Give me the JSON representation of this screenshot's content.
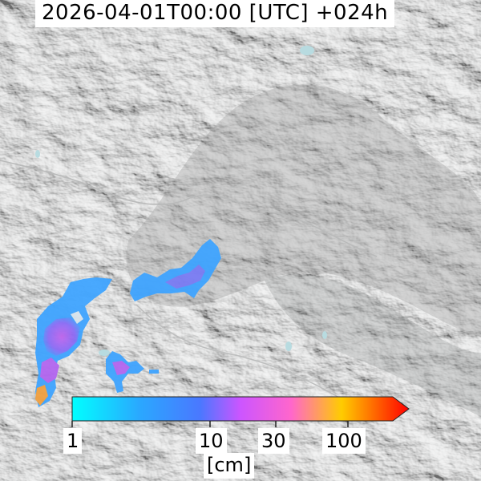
{
  "header": {
    "title": "2026-04-01T00:00 [UTC] +024h"
  },
  "legend": {
    "unit": "[cm]",
    "ticks": [
      {
        "label": "1",
        "value": 1
      },
      {
        "label": "10",
        "value": 10
      },
      {
        "label": "30",
        "value": 30
      },
      {
        "label": "100",
        "value": 100
      }
    ],
    "scale": "log",
    "range": [
      1,
      300
    ],
    "colors": [
      "#00ffff",
      "#1e90ff",
      "#cc55ff",
      "#ff66cc",
      "#ffcc00",
      "#ff0000"
    ],
    "extend": "max"
  },
  "map": {
    "basemap": "grey hillshade terrain",
    "overlay": "snow depth",
    "overlay_colors": {
      "low": "#3fa4ff",
      "mid": "#b060f0",
      "high": "#f0a040"
    }
  }
}
